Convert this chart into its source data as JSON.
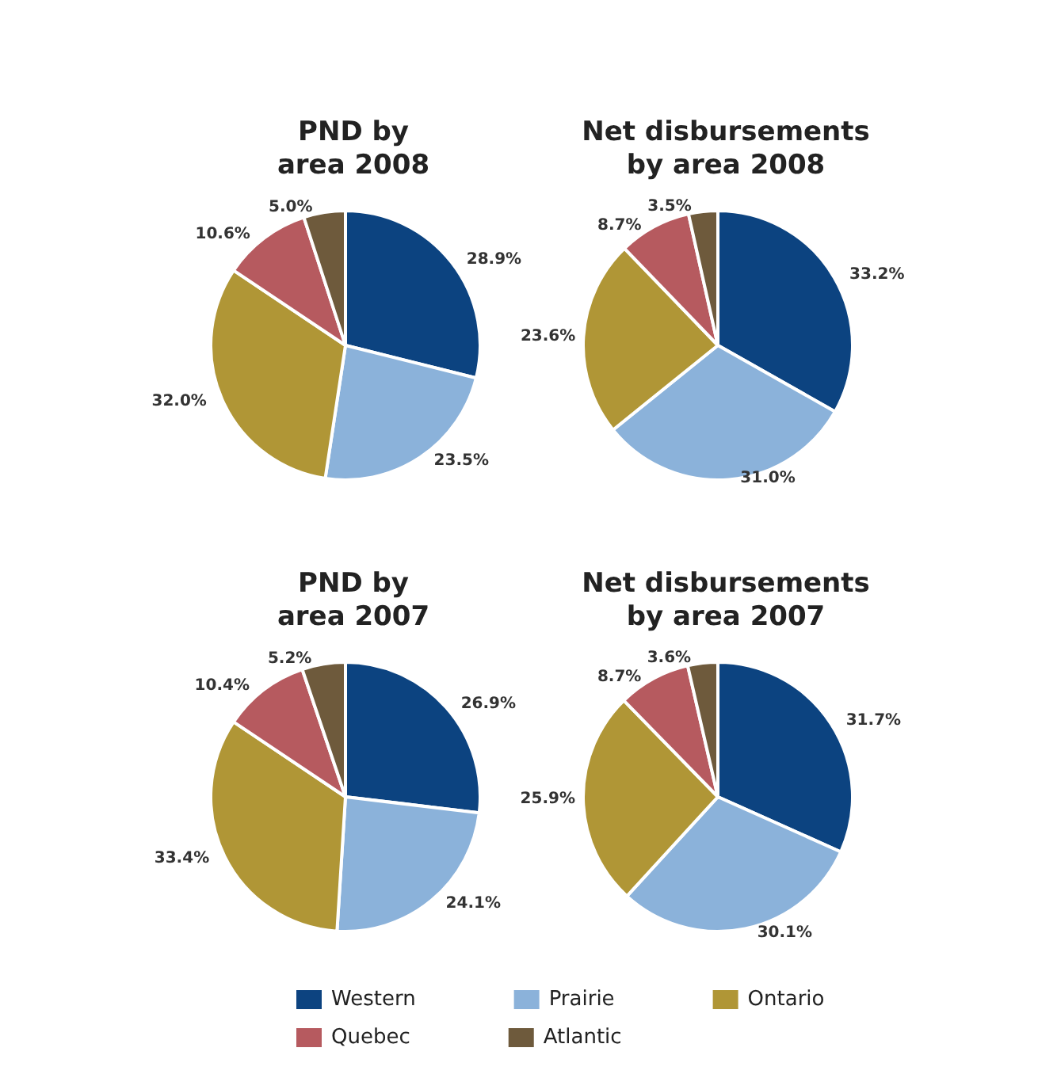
{
  "chart_data": [
    {
      "type": "pie",
      "title": "PND by\narea 2008",
      "categories": [
        null,
        null,
        null,
        null,
        null
      ],
      "values": [
        28.9,
        23.5,
        32.0,
        10.6,
        5.0
      ],
      "value_labels": [
        "28.9%",
        "23.5%",
        "32.0%",
        "10.6%",
        "5.0%"
      ],
      "colors": [
        "#0c4380",
        "#8bb2da",
        "#b09636",
        "#b65a5f",
        "#6e5a3c"
      ]
    },
    {
      "type": "pie",
      "title": "Net disbursements\nby area 2008",
      "categories": [
        null,
        null,
        null,
        null,
        null
      ],
      "values": [
        33.2,
        31.0,
        23.6,
        8.7,
        3.5
      ],
      "value_labels": [
        "33.2%",
        "31.0%",
        "23.6%",
        "8.7%",
        "3.5%"
      ],
      "colors": [
        "#0c4380",
        "#8bb2da",
        "#b09636",
        "#b65a5f",
        "#6e5a3c"
      ]
    },
    {
      "type": "pie",
      "title": "PND by\narea 2007",
      "categories": [
        null,
        null,
        null,
        null,
        null
      ],
      "values": [
        26.9,
        24.1,
        33.4,
        10.4,
        5.2
      ],
      "value_labels": [
        "26.9%",
        "24.1%",
        "33.4%",
        "10.4%",
        "5.2%"
      ],
      "colors": [
        "#0c4380",
        "#8bb2da",
        "#b09636",
        "#b65a5f",
        "#6e5a3c"
      ]
    },
    {
      "type": "pie",
      "title": "Net disbursements\nby area 2007",
      "categories": [
        "Western",
        "Prairie",
        "Ontario",
        "Quebec",
        "Atlantic"
      ],
      "values": [
        31.7,
        30.1,
        25.9,
        8.7,
        3.6
      ],
      "value_labels": [
        "31.7%",
        "30.1%",
        "25.9%",
        "8.7%",
        "3.6%"
      ],
      "colors": [
        "#0c4380",
        "#8bb2da",
        "#b09636",
        "#b65a5f",
        "#6e5a3c"
      ],
      "legend": "bottom"
    }
  ]
}
